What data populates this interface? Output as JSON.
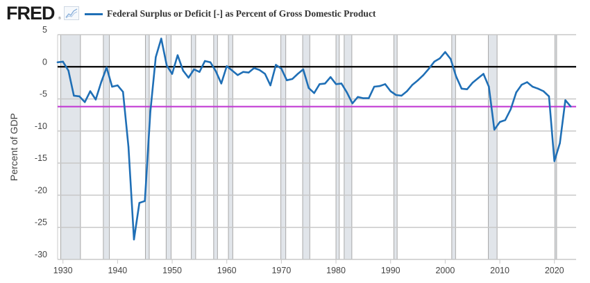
{
  "header": {
    "logo_text": "FRED",
    "logo_reg": "®",
    "logo_icon": "line-chart-icon"
  },
  "legend": {
    "series_label": "Federal Surplus or Deficit [-] as Percent of Gross Domestic Product",
    "series_color": "#1f6fb6"
  },
  "colors": {
    "series": "#1f6fb6",
    "zero_line": "#000000",
    "reference_line": "#c23bd4",
    "recession": "#e1e5ea",
    "grid": "#c8c8c8"
  },
  "chart_data": {
    "type": "line",
    "title": "Federal Surplus or Deficit [-] as Percent of Gross Domestic Product",
    "xlabel": "",
    "ylabel": "Percent of GDP",
    "xlim": [
      1929,
      2024
    ],
    "ylim": [
      -30,
      5
    ],
    "x_ticks": [
      1930,
      1940,
      1950,
      1960,
      1970,
      1980,
      1990,
      2000,
      2010,
      2020
    ],
    "y_ticks": [
      5,
      0,
      -5,
      -10,
      -15,
      -20,
      -25,
      -30
    ],
    "grid": true,
    "legend": "top-left",
    "horizontal_lines": [
      {
        "name": "zero",
        "value": 0,
        "color": "#000000"
      },
      {
        "name": "latest-value",
        "value": -6.2,
        "color": "#c23bd4"
      }
    ],
    "recessions": [
      [
        1929.6,
        1933.2
      ],
      [
        1937.4,
        1938.5
      ],
      [
        1945.1,
        1945.8
      ],
      [
        1948.9,
        1949.8
      ],
      [
        1953.5,
        1954.3
      ],
      [
        1957.6,
        1958.3
      ],
      [
        1960.3,
        1961.1
      ],
      [
        1969.9,
        1970.8
      ],
      [
        1973.9,
        1975.2
      ],
      [
        1980.0,
        1980.6
      ],
      [
        1981.5,
        1982.9
      ],
      [
        1990.6,
        1991.2
      ],
      [
        2001.2,
        2001.9
      ],
      [
        2007.9,
        2009.5
      ],
      [
        2020.1,
        2020.4
      ]
    ],
    "series": [
      {
        "name": "Federal Surplus or Deficit [-] as Percent of Gross Domestic Product",
        "x": [
          1929,
          1930,
          1931,
          1932,
          1933,
          1934,
          1935,
          1936,
          1937,
          1938,
          1939,
          1940,
          1941,
          1942,
          1943,
          1944,
          1945,
          1946,
          1947,
          1948,
          1949,
          1950,
          1951,
          1952,
          1953,
          1954,
          1955,
          1956,
          1957,
          1958,
          1959,
          1960,
          1961,
          1962,
          1963,
          1964,
          1965,
          1966,
          1967,
          1968,
          1969,
          1970,
          1971,
          1972,
          1973,
          1974,
          1975,
          1976,
          1977,
          1978,
          1979,
          1980,
          1981,
          1982,
          1983,
          1984,
          1985,
          1986,
          1987,
          1988,
          1989,
          1990,
          1991,
          1992,
          1993,
          1994,
          1995,
          1996,
          1997,
          1998,
          1999,
          2000,
          2001,
          2002,
          2003,
          2004,
          2005,
          2006,
          2007,
          2008,
          2009,
          2010,
          2011,
          2012,
          2013,
          2014,
          2015,
          2016,
          2017,
          2018,
          2019,
          2020,
          2021,
          2022,
          2023
        ],
        "values": [
          0.7,
          0.8,
          -0.6,
          -4.5,
          -4.6,
          -5.5,
          -3.8,
          -5.1,
          -2.4,
          -0.1,
          -3.1,
          -2.9,
          -3.9,
          -12.5,
          -26.9,
          -21.2,
          -20.9,
          -7.0,
          1.5,
          4.4,
          0.2,
          -1.1,
          1.8,
          -0.6,
          -1.7,
          -0.4,
          -0.8,
          0.9,
          0.7,
          -0.7,
          -2.6,
          0.1,
          -0.6,
          -1.3,
          -0.8,
          -0.9,
          -0.2,
          -0.5,
          -1.1,
          -2.9,
          0.3,
          -0.3,
          -2.1,
          -1.9,
          -1.1,
          -0.4,
          -3.3,
          -4.1,
          -2.7,
          -2.6,
          -1.6,
          -2.7,
          -2.6,
          -4.0,
          -5.7,
          -4.7,
          -4.9,
          -4.9,
          -3.1,
          -3.0,
          -2.7,
          -3.8,
          -4.4,
          -4.5,
          -3.8,
          -2.8,
          -2.1,
          -1.3,
          -0.3,
          0.8,
          1.3,
          2.3,
          1.2,
          -1.5,
          -3.4,
          -3.5,
          -2.5,
          -1.8,
          -1.1,
          -3.1,
          -9.8,
          -8.6,
          -8.3,
          -6.6,
          -4.0,
          -2.8,
          -2.4,
          -3.1,
          -3.4,
          -3.8,
          -4.6,
          -14.7,
          -11.9,
          -5.2,
          -6.2
        ]
      }
    ]
  }
}
